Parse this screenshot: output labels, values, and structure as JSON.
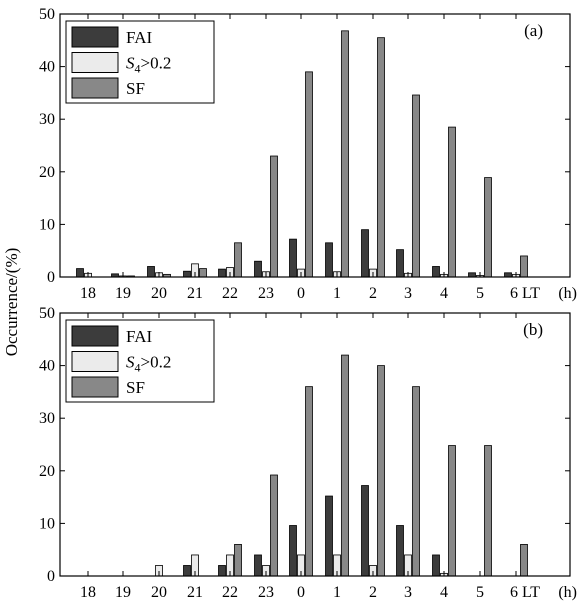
{
  "figure": {
    "ylabel": "Occurrence/(%)",
    "xunit": "(h)"
  },
  "chart_data": [
    {
      "type": "bar",
      "panel_label": "(a)",
      "categories": [
        "18",
        "19",
        "20",
        "21",
        "22",
        "23",
        "0",
        "1",
        "2",
        "3",
        "4",
        "5",
        "6 LT"
      ],
      "series": [
        {
          "name": "FAI",
          "color": "#3c3c3c",
          "values": [
            1.6,
            0.6,
            2.0,
            1.1,
            1.5,
            3.0,
            7.2,
            6.5,
            9.0,
            5.2,
            2.0,
            0.8,
            0.8
          ]
        },
        {
          "name": "S4>0.2",
          "color": "#ebebeb",
          "values": [
            0.7,
            0.2,
            0.8,
            2.5,
            1.8,
            1.0,
            1.5,
            1.0,
            1.5,
            0.7,
            0.5,
            0.3,
            0.5
          ]
        },
        {
          "name": "SF",
          "color": "#888888",
          "values": [
            0,
            0.2,
            0.5,
            1.6,
            6.5,
            23.0,
            39.0,
            46.8,
            45.5,
            34.6,
            28.5,
            18.9,
            4.0
          ]
        }
      ],
      "ylabel": "Occurrence/(%)",
      "ylim": [
        0,
        50
      ],
      "yticks": [
        0,
        10,
        20,
        30,
        40,
        50
      ],
      "legend": "top-left"
    },
    {
      "type": "bar",
      "panel_label": "(b)",
      "categories": [
        "18",
        "19",
        "20",
        "21",
        "22",
        "23",
        "0",
        "1",
        "2",
        "3",
        "4",
        "5",
        "6 LT"
      ],
      "series": [
        {
          "name": "FAI",
          "color": "#3c3c3c",
          "values": [
            0,
            0,
            0,
            2.0,
            2.0,
            4.0,
            9.6,
            15.2,
            17.2,
            9.6,
            4.0,
            0,
            0
          ]
        },
        {
          "name": "S4>0.2",
          "color": "#ebebeb",
          "values": [
            0,
            0,
            2.0,
            4.0,
            4.0,
            2.0,
            4.0,
            4.0,
            2.0,
            4.0,
            0.5,
            0,
            0
          ]
        },
        {
          "name": "SF",
          "color": "#888888",
          "values": [
            0,
            0,
            0,
            0,
            6.0,
            19.2,
            36.0,
            42.0,
            40.0,
            36.0,
            24.8,
            24.8,
            6.0
          ]
        }
      ],
      "ylabel": "Occurrence/(%)",
      "ylim": [
        0,
        50
      ],
      "yticks": [
        0,
        10,
        20,
        30,
        40,
        50
      ],
      "legend": "top-left"
    }
  ]
}
